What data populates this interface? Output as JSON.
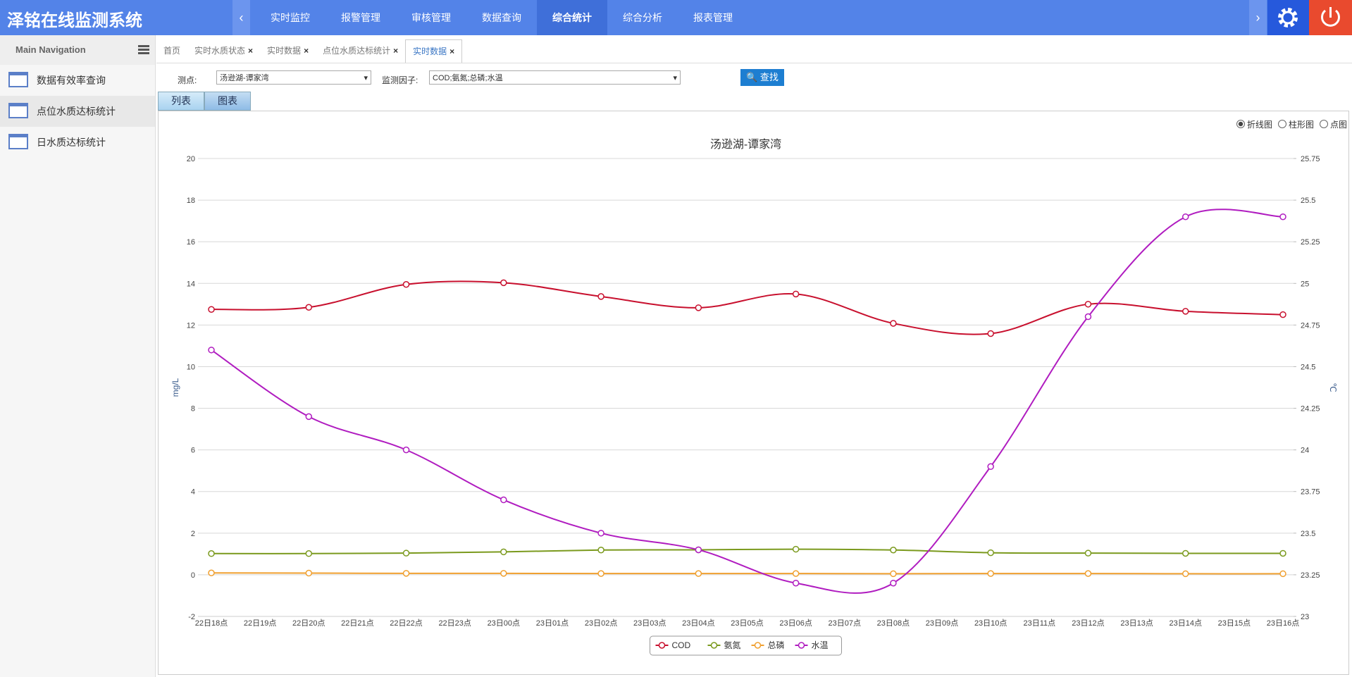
{
  "header": {
    "title": "泽铭在线监测系统",
    "nav": [
      "实时监控",
      "报警管理",
      "审核管理",
      "数据查询",
      "综合统计",
      "综合分析",
      "报表管理"
    ]
  },
  "sidebar": {
    "title": "Main Navigation",
    "items": [
      "数据有效率查询",
      "点位水质达标统计",
      "日水质达标统计"
    ]
  },
  "tabs": [
    "首页",
    "实时水质状态",
    "实时数据",
    "点位水质达标统计",
    "实时数据"
  ],
  "form": {
    "station_label": "测点:",
    "station": "汤逊湖-谭家湾",
    "factor_label": "监测因子:",
    "factor": "COD;氨氮;总磷;水温",
    "button": "查找"
  },
  "view_tabs": [
    "列表",
    "图表"
  ],
  "chart_options": [
    "折线图",
    "柱形图",
    "点图"
  ],
  "chart_data": {
    "type": "line",
    "title": "汤逊湖-谭家湾",
    "y_label": "mg/L",
    "y2_label": "℃",
    "categories": [
      "22日18点",
      "22日19点",
      "22日20点",
      "22日21点",
      "22日22点",
      "22日23点",
      "23日00点",
      "23日01点",
      "23日02点",
      "23日03点",
      "23日04点",
      "23日05点",
      "23日06点",
      "23日07点",
      "23日08点",
      "23日09点",
      "23日10点",
      "23日11点",
      "23日12点",
      "23日13点",
      "23日14点",
      "23日15点",
      "23日16点"
    ],
    "connect_nulls": true,
    "series": [
      {
        "name": "COD",
        "color": "#c8102e",
        "values": [
          12.75,
          null,
          12.85,
          null,
          13.95,
          null,
          14.03,
          null,
          13.37,
          null,
          12.83,
          null,
          13.49,
          null,
          12.08,
          null,
          11.59,
          null,
          13.0,
          null,
          12.66,
          null,
          12.5
        ]
      },
      {
        "name": "氨氮",
        "color": "#7b9a1e",
        "values": [
          1.02,
          null,
          1.02,
          null,
          1.04,
          null,
          1.1,
          null,
          1.19,
          null,
          1.2,
          null,
          1.23,
          null,
          1.19,
          null,
          1.06,
          null,
          1.04,
          null,
          1.03,
          null,
          1.03
        ]
      },
      {
        "name": "总磷",
        "color": "#f0a030",
        "values": [
          0.09,
          null,
          0.08,
          null,
          0.07,
          null,
          0.07,
          null,
          0.06,
          null,
          0.06,
          null,
          0.06,
          null,
          0.05,
          null,
          0.06,
          null,
          0.06,
          null,
          0.05,
          null,
          0.05
        ]
      },
      {
        "name": "水温",
        "color": "#b01cc0",
        "axis": "y2",
        "values": [
          24.6,
          null,
          24.2,
          null,
          24.0,
          null,
          23.7,
          null,
          23.5,
          null,
          23.4,
          null,
          23.2,
          null,
          23.2,
          null,
          23.9,
          null,
          24.8,
          null,
          25.4,
          null,
          25.4
        ]
      }
    ],
    "ylim": [
      -2,
      20
    ],
    "yticks": [
      -2,
      0,
      2,
      4,
      6,
      8,
      10,
      12,
      14,
      16,
      18,
      20
    ],
    "y2lim": [
      23,
      25.75
    ],
    "y2ticks": [
      23,
      23.25,
      23.5,
      23.75,
      24,
      24.25,
      24.5,
      24.75,
      25,
      25.25,
      25.5,
      25.75
    ],
    "grid": true,
    "legend": "bottom"
  }
}
